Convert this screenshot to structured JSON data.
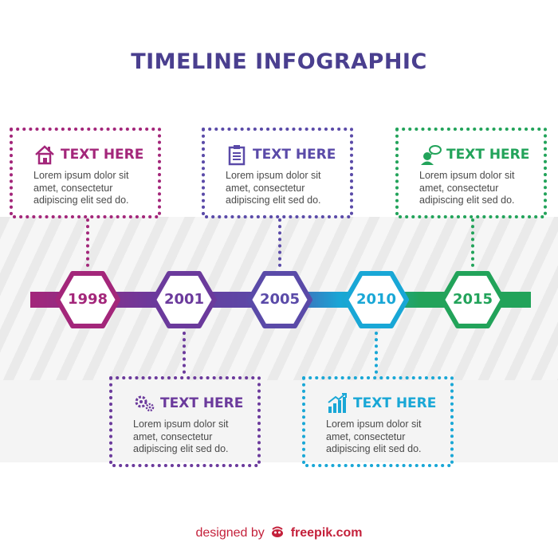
{
  "title": "TIMELINE INFOGRAPHIC",
  "colors": {
    "magenta": "#a3267a",
    "purple": "#6b3a9c",
    "indigo": "#5a4aa8",
    "cyan": "#19a7d6",
    "green": "#22a35a",
    "title": "#4a3f8f",
    "footer": "#c4213b"
  },
  "milestones": [
    {
      "year": "1998",
      "color": "#a3267a",
      "card": {
        "position": "top",
        "icon": "house-icon",
        "heading": "TEXT HERE",
        "text": "Lorem ipsum dolor sit amet, consectetur adipiscing elit sed do."
      }
    },
    {
      "year": "2001",
      "color": "#6b3a9c",
      "card": {
        "position": "bottom",
        "icon": "gears-icon",
        "heading": "TEXT HERE",
        "text": "Lorem ipsum dolor sit amet, consectetur adipiscing elit sed do."
      }
    },
    {
      "year": "2005",
      "color": "#5a4aa8",
      "card": {
        "position": "top",
        "icon": "clipboard-icon",
        "heading": "TEXT HERE",
        "text": "Lorem ipsum dolor sit amet, consectetur adipiscing elit sed do."
      }
    },
    {
      "year": "2010",
      "color": "#19a7d6",
      "card": {
        "position": "bottom",
        "icon": "bar-chart-icon",
        "heading": "TEXT HERE",
        "text": "Lorem ipsum dolor sit amet, consectetur adipiscing elit sed do."
      }
    },
    {
      "year": "2015",
      "color": "#22a35a",
      "card": {
        "position": "top",
        "icon": "user-chat-icon",
        "heading": "TEXT HERE",
        "text": "Lorem ipsum dolor sit amet, consectetur adipiscing elit sed do."
      }
    }
  ],
  "footer": {
    "prefix": "designed by",
    "brand": "freepik.com"
  }
}
